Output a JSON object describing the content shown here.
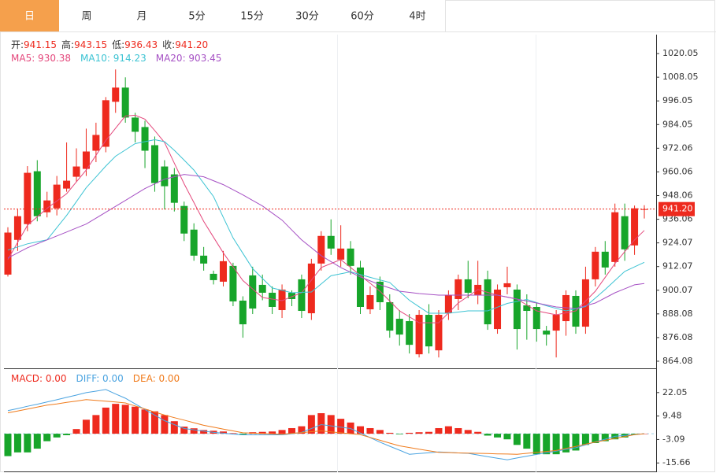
{
  "tabs": {
    "items": [
      "日",
      "周",
      "月",
      "5分",
      "15分",
      "30分",
      "60分",
      "4时"
    ],
    "active": 0
  },
  "chart_data": [
    {
      "type": "candlestick",
      "readout": [
        {
          "name": "开:",
          "value": "941.15"
        },
        {
          "name": "高:",
          "value": "943.15"
        },
        {
          "name": "低:",
          "value": "936.43"
        },
        {
          "name": "收:",
          "value": "941.20"
        }
      ],
      "up_color": "#ee2a1e",
      "down_color": "#17a52a",
      "open": [
        908,
        925.6,
        933.6,
        960.4,
        939.6,
        941.6,
        951.6,
        957.6,
        961.6,
        970.8,
        972.8,
        995.6,
        1002.8,
        987.6,
        982.8,
        973.6,
        962.8,
        958.8,
        942.8,
        930.8,
        917.6,
        908.4,
        904.4,
        912.4,
        894.8,
        907.6,
        902.8,
        898.8,
        890,
        898.8,
        905.6,
        888.4,
        913.6,
        927.6,
        915.6,
        921.2,
        911.6,
        890.4,
        904.4,
        894,
        885.6,
        884.4,
        867.6,
        887.6,
        869.6,
        888.4,
        895.6,
        905.6,
        897.6,
        905.6,
        880.4,
        901.6,
        900.4,
        892.4,
        891.6,
        879.6,
        879.6,
        884.4,
        897.2,
        881.6,
        905.6,
        919.6,
        914.4,
        937.6,
        922.8,
        941.15
      ],
      "high": [
        932,
        941,
        963,
        966,
        950,
        958,
        975,
        972,
        982,
        985,
        998,
        1012,
        1008,
        990,
        986,
        978,
        966,
        962,
        945,
        934,
        922,
        910,
        920,
        914,
        897,
        912,
        908,
        902,
        903,
        900,
        908,
        916,
        930,
        936,
        933,
        925,
        915,
        902,
        907,
        898,
        890,
        888,
        890,
        893,
        890,
        900,
        908,
        915,
        915,
        910,
        903,
        912,
        903,
        898,
        894,
        882,
        890,
        900,
        900,
        912,
        922,
        925,
        944,
        944,
        943,
        943.15
      ],
      "low": [
        907,
        920,
        930,
        935,
        937,
        938,
        950,
        955,
        958,
        965,
        970,
        990,
        985,
        975,
        962,
        950,
        941,
        940,
        925,
        915,
        910,
        903,
        902,
        892,
        876,
        888,
        895,
        888,
        886,
        892,
        886,
        885,
        910,
        918,
        912,
        908,
        888,
        888,
        890,
        876,
        872,
        868,
        866,
        868,
        866,
        885,
        890,
        896,
        893,
        880,
        878,
        898,
        870,
        875,
        874,
        872,
        866,
        877,
        878,
        878,
        902,
        908,
        912,
        915,
        918,
        936.43
      ],
      "close": [
        929.3,
        937.6,
        959.6,
        937.6,
        945.6,
        953.6,
        955.6,
        962.8,
        970.4,
        978.8,
        996.4,
        1002.8,
        987.6,
        980.4,
        970.8,
        954.4,
        952.8,
        944.4,
        928.8,
        917.6,
        913.6,
        905.2,
        914.8,
        894.4,
        882.8,
        890.8,
        898.8,
        891.6,
        900.4,
        895.6,
        889.6,
        913.6,
        927.6,
        921.2,
        921.2,
        912.4,
        891.6,
        897.6,
        894,
        879.6,
        877.6,
        872.4,
        887.6,
        871.6,
        887.6,
        897.6,
        905.6,
        898.8,
        902.8,
        882.8,
        900.4,
        903.6,
        880.4,
        889.6,
        880.4,
        877.6,
        887.6,
        897.6,
        881.6,
        905.6,
        919.6,
        911.6,
        939.6,
        920.8,
        941.6,
        941.2
      ],
      "overlays": [
        {
          "label": "MA5: 930.38",
          "color": "#e4487c",
          "values": [
            915.6,
            924.3,
            933,
            937.3,
            941.6,
            945.3,
            949,
            955,
            961,
            968.5,
            976,
            982.2,
            988.4,
            988.8,
            986.8,
            981,
            975,
            964.5,
            954,
            944.5,
            935,
            927,
            919,
            912,
            905,
            900.7,
            896.4,
            895.6,
            894.8,
            896.8,
            898.8,
            905.2,
            911.6,
            913.6,
            915.6,
            911.6,
            907.6,
            903.6,
            899.6,
            894.6,
            889.6,
            886.6,
            883.6,
            883.6,
            883.6,
            888.6,
            893.6,
            897,
            900.4,
            899,
            897.6,
            896.6,
            895.6,
            892.6,
            889.6,
            888.6,
            887.6,
            888.6,
            889.6,
            894.6,
            899.6,
            906.6,
            913.6,
            919.6,
            925.6,
            930.38
          ]
        },
        {
          "label": "MA10: 914.23",
          "color": "#3cc3d3",
          "values": [
            920.4,
            922,
            923.6,
            924.6,
            925.6,
            931.8,
            938,
            945,
            952,
            957.5,
            963,
            968,
            971.2,
            974.4,
            975.4,
            976.4,
            975.4,
            971,
            966,
            961,
            954.3,
            947.6,
            937,
            926.6,
            918.8,
            911,
            906,
            901.2,
            900,
            898.8,
            899,
            899.2,
            903.3,
            907.4,
            908.4,
            909.4,
            908,
            906.6,
            905.3,
            904,
            899.5,
            895,
            891.7,
            888.4,
            888.4,
            888.4,
            889,
            889.6,
            889.6,
            889.6,
            891.5,
            893.4,
            894.4,
            895.4,
            893.8,
            892.2,
            890.9,
            889.6,
            890.7,
            891.8,
            896.1,
            900.4,
            905,
            909.6,
            911.9,
            914.23
          ]
        },
        {
          "label": "MA20: 903.45",
          "color": "#a651c4",
          "values": [
            916.4,
            919,
            921.6,
            923.6,
            925.6,
            927.6,
            929.6,
            931.6,
            933.6,
            936.6,
            939.6,
            942.6,
            945.6,
            948.6,
            951.6,
            954,
            956.4,
            957.6,
            958.8,
            958.2,
            957.6,
            955.6,
            953.6,
            951,
            948.4,
            945.6,
            942.8,
            939.2,
            935.6,
            930.6,
            925.6,
            921.6,
            917.6,
            914.6,
            911.6,
            909.2,
            906.8,
            904.8,
            902.8,
            901.2,
            899.6,
            899,
            898.4,
            898,
            897.6,
            897.6,
            897.6,
            897.6,
            897.6,
            897.6,
            897.6,
            896.6,
            895.6,
            894.6,
            893.6,
            892.6,
            891.6,
            891.2,
            890.8,
            892.2,
            893.6,
            896.2,
            898.8,
            900.8,
            902.8,
            903.45
          ]
        }
      ],
      "last_price": {
        "value": 941.2,
        "label": "941.20"
      },
      "ylim": [
        860.48,
        1029.65
      ],
      "yticks": [
        1020.05,
        1008.05,
        996.05,
        984.05,
        972.06,
        960.06,
        948.06,
        936.06,
        924.07,
        912.07,
        900.07,
        888.08,
        876.08,
        864.08
      ]
    },
    {
      "type": "macd",
      "histogram": {
        "label": "MACD: 0.00",
        "up_color": "#ee2a1e",
        "down_color": "#17a52a",
        "values": [
          -12,
          -10,
          -10,
          -8,
          -4,
          -2,
          -0.8,
          2.5,
          7.5,
          10,
          14,
          16,
          15.5,
          14.5,
          13,
          12,
          10,
          6.7,
          3.8,
          2.9,
          2,
          1.6,
          1.2,
          0.3,
          -0.5,
          0.8,
          1,
          1.2,
          2,
          3,
          4,
          10,
          11,
          10,
          8,
          6,
          4,
          3,
          2,
          0.5,
          -0.3,
          0.5,
          0.8,
          1,
          3,
          4,
          3,
          2,
          1,
          -1,
          -2,
          -3,
          -6,
          -8,
          -11,
          -11,
          -11,
          -10,
          -9,
          -6,
          -5,
          -4,
          -3,
          -2,
          -0.5,
          0
        ]
      },
      "lines": [
        {
          "label": "DIFF: 0.00",
          "color": "#4aa3e0",
          "values": [
            12.4,
            13.5,
            14.7,
            15.8,
            17,
            18.2,
            19.5,
            20.7,
            22,
            22.8,
            23.7,
            21.3,
            19,
            16,
            13,
            10,
            7,
            4.9,
            2.8,
            2.1,
            1.4,
            0.7,
            0.3,
            -0.2,
            -0.6,
            -0.6,
            -0.6,
            -0.6,
            -0.6,
            0,
            0.7,
            2.8,
            4.9,
            4.2,
            3.5,
            2.8,
            0.4,
            -2.1,
            -4.5,
            -6.7,
            -8.8,
            -11,
            -10.6,
            -10.2,
            -9.8,
            -10,
            -10.3,
            -10.5,
            -11.4,
            -12.3,
            -13.1,
            -14,
            -13,
            -12,
            -11.1,
            -10.2,
            -9.3,
            -8.4,
            -7.5,
            -6,
            -4.4,
            -2.9,
            -1.4,
            -0.9,
            -0.5,
            0
          ]
        },
        {
          "label": "DEA: 0.00",
          "color": "#f07b1c",
          "values": [
            11.2,
            12.2,
            13.2,
            14.3,
            15.3,
            16,
            16.8,
            17.5,
            18.3,
            17.9,
            17.4,
            17,
            16.5,
            14.9,
            13.3,
            11.6,
            10,
            8.6,
            7.3,
            5.9,
            4.5,
            3.5,
            2.5,
            1.5,
            0.5,
            0.3,
            0.1,
            -0.1,
            -0.3,
            0.2,
            0.6,
            1.1,
            1.5,
            1,
            0.5,
            0,
            -0.5,
            -2,
            -3.5,
            -5,
            -6.5,
            -7.4,
            -8.3,
            -9.1,
            -10,
            -10.1,
            -10.3,
            -10.4,
            -10.5,
            -10.6,
            -10.8,
            -10.9,
            -11,
            -10.5,
            -10,
            -9.5,
            -9,
            -7.9,
            -6.8,
            -5.6,
            -4.5,
            -3.5,
            -2.5,
            -1.5,
            -0.5,
            0
          ]
        }
      ],
      "ylim": [
        -20.2,
        34.2
      ],
      "yticks": [
        22.05,
        9.48,
        -3.09,
        -15.66
      ]
    }
  ]
}
